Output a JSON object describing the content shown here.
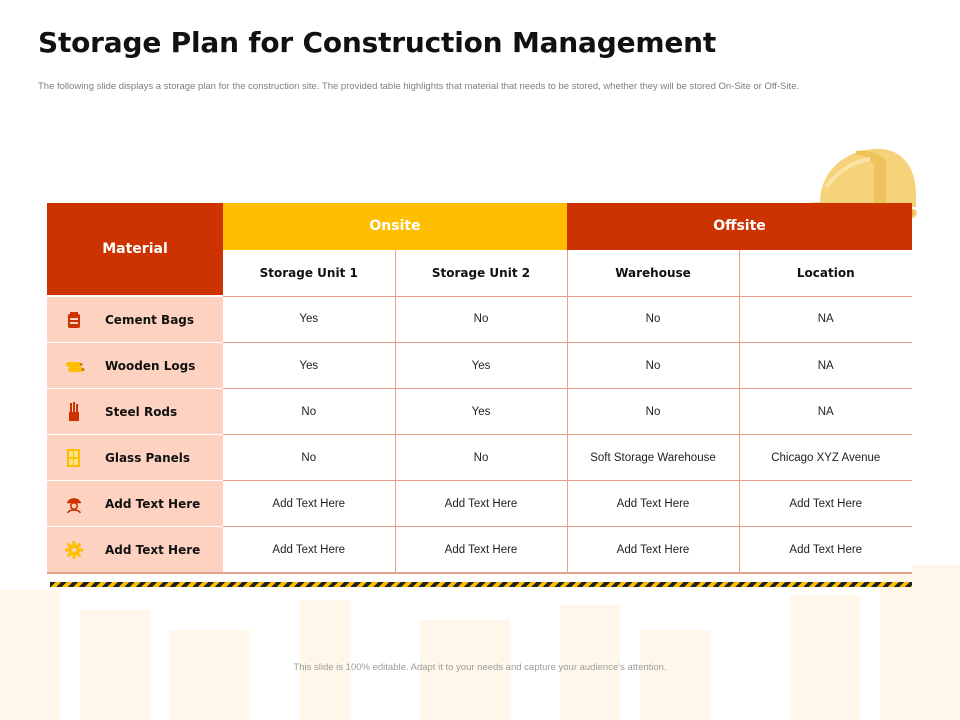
{
  "slide": {
    "title": "Storage Plan for Construction Management",
    "subtitle": "The following slide displays a storage plan for the construction site. The provided table highlights that material that needs to be stored, whether they will be stored On-Site or Off-Site.",
    "footer": "This slide is 100% editable. Adapt it to your needs and capture your audience’s attention."
  },
  "colors": {
    "primary": "#cc3300",
    "accent": "#ffbf00",
    "row_tint": "#fdd2c0"
  },
  "table": {
    "header": {
      "material": "Material",
      "onsite": "Onsite",
      "offsite": "Offsite",
      "columns": [
        "Storage  Unit 1",
        "Storage  Unit 2",
        "Warehouse",
        "Location"
      ]
    },
    "rows": [
      {
        "icon": "cement-bags-icon",
        "material": "Cement  Bags",
        "values": [
          "Yes",
          "No",
          "No",
          "NA"
        ]
      },
      {
        "icon": "wooden-logs-icon",
        "material": "Wooden  Logs",
        "values": [
          "Yes",
          "Yes",
          "No",
          "NA"
        ]
      },
      {
        "icon": "steel-rods-icon",
        "material": "Steel  Rods",
        "values": [
          "No",
          "Yes",
          "No",
          "NA"
        ]
      },
      {
        "icon": "glass-panels-icon",
        "material": "Glass  Panels",
        "values": [
          "No",
          "No",
          "Soft Storage Warehouse",
          "Chicago XYZ Avenue"
        ]
      },
      {
        "icon": "worker-icon",
        "material": "Add  Text  Here",
        "values": [
          "Add Text Here",
          "Add Text Here",
          "Add Text Here",
          "Add Text Here"
        ]
      },
      {
        "icon": "gear-icon",
        "material": "Add  Text  Here",
        "values": [
          "Add Text Here",
          "Add Text Here",
          "Add Text Here",
          "Add Text Here"
        ]
      }
    ]
  }
}
